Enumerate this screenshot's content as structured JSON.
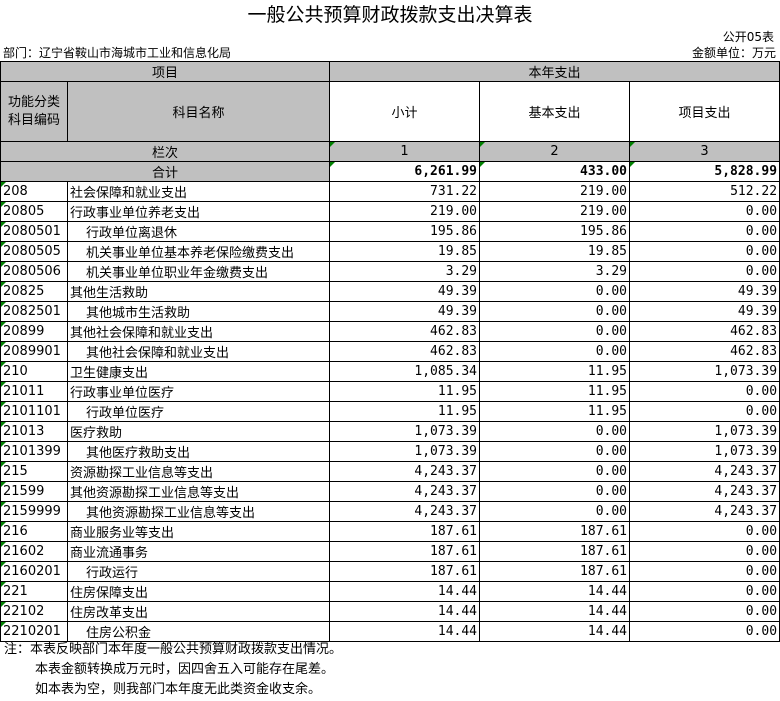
{
  "title": "一般公共预算财政拨款支出决算表",
  "form_code": "公开05表",
  "department": "部门：辽宁省鞍山市海城市工业和信息化局",
  "unit": "金额单位：万元",
  "header": {
    "project": "项目",
    "current_year": "本年支出",
    "func_code": "功能分类科目编码",
    "subject_name": "科目名称",
    "subtotal": "小计",
    "basic": "基本支出",
    "project_exp": "项目支出",
    "column_no": "栏次",
    "col1": "1",
    "col2": "2",
    "col3": "3"
  },
  "total": {
    "label": "合计",
    "subtotal": "6,261.99",
    "basic": "433.00",
    "project": "5,828.99"
  },
  "rows": [
    {
      "code": "208",
      "name": "社会保障和就业支出",
      "subtotal": "731.22",
      "basic": "219.00",
      "project": "512.22",
      "indent": 0
    },
    {
      "code": "20805",
      "name": "行政事业单位养老支出",
      "subtotal": "219.00",
      "basic": "219.00",
      "project": "0.00",
      "indent": 0
    },
    {
      "code": "2080501",
      "name": "行政单位离退休",
      "subtotal": "195.86",
      "basic": "195.86",
      "project": "0.00",
      "indent": 1
    },
    {
      "code": "2080505",
      "name": "机关事业单位基本养老保险缴费支出",
      "subtotal": "19.85",
      "basic": "19.85",
      "project": "0.00",
      "indent": 1
    },
    {
      "code": "2080506",
      "name": "机关事业单位职业年金缴费支出",
      "subtotal": "3.29",
      "basic": "3.29",
      "project": "0.00",
      "indent": 1
    },
    {
      "code": "20825",
      "name": "其他生活救助",
      "subtotal": "49.39",
      "basic": "0.00",
      "project": "49.39",
      "indent": 0
    },
    {
      "code": "2082501",
      "name": "其他城市生活救助",
      "subtotal": "49.39",
      "basic": "0.00",
      "project": "49.39",
      "indent": 1
    },
    {
      "code": "20899",
      "name": "其他社会保障和就业支出",
      "subtotal": "462.83",
      "basic": "0.00",
      "project": "462.83",
      "indent": 0
    },
    {
      "code": "2089901",
      "name": "其他社会保障和就业支出",
      "subtotal": "462.83",
      "basic": "0.00",
      "project": "462.83",
      "indent": 1
    },
    {
      "code": "210",
      "name": "卫生健康支出",
      "subtotal": "1,085.34",
      "basic": "11.95",
      "project": "1,073.39",
      "indent": 0
    },
    {
      "code": "21011",
      "name": "行政事业单位医疗",
      "subtotal": "11.95",
      "basic": "11.95",
      "project": "0.00",
      "indent": 0
    },
    {
      "code": "2101101",
      "name": "行政单位医疗",
      "subtotal": "11.95",
      "basic": "11.95",
      "project": "0.00",
      "indent": 1
    },
    {
      "code": "21013",
      "name": "医疗救助",
      "subtotal": "1,073.39",
      "basic": "0.00",
      "project": "1,073.39",
      "indent": 0
    },
    {
      "code": "2101399",
      "name": "其他医疗救助支出",
      "subtotal": "1,073.39",
      "basic": "0.00",
      "project": "1,073.39",
      "indent": 1
    },
    {
      "code": "215",
      "name": "资源勘探工业信息等支出",
      "subtotal": "4,243.37",
      "basic": "0.00",
      "project": "4,243.37",
      "indent": 0
    },
    {
      "code": "21599",
      "name": "其他资源勘探工业信息等支出",
      "subtotal": "4,243.37",
      "basic": "0.00",
      "project": "4,243.37",
      "indent": 0
    },
    {
      "code": "2159999",
      "name": "其他资源勘探工业信息等支出",
      "subtotal": "4,243.37",
      "basic": "0.00",
      "project": "4,243.37",
      "indent": 1
    },
    {
      "code": "216",
      "name": "商业服务业等支出",
      "subtotal": "187.61",
      "basic": "187.61",
      "project": "0.00",
      "indent": 0
    },
    {
      "code": "21602",
      "name": "商业流通事务",
      "subtotal": "187.61",
      "basic": "187.61",
      "project": "0.00",
      "indent": 0
    },
    {
      "code": "2160201",
      "name": "行政运行",
      "subtotal": "187.61",
      "basic": "187.61",
      "project": "0.00",
      "indent": 1
    },
    {
      "code": "221",
      "name": "住房保障支出",
      "subtotal": "14.44",
      "basic": "14.44",
      "project": "0.00",
      "indent": 0
    },
    {
      "code": "22102",
      "name": "住房改革支出",
      "subtotal": "14.44",
      "basic": "14.44",
      "project": "0.00",
      "indent": 0
    },
    {
      "code": "2210201",
      "name": "住房公积金",
      "subtotal": "14.44",
      "basic": "14.44",
      "project": "0.00",
      "indent": 1
    }
  ],
  "notes": {
    "n1": "注：本表反映部门本年度一般公共预算财政拨款支出情况。",
    "n2": "本表金额转换成万元时，因四舍五入可能存在尾差。",
    "n3": "如本表为空，则我部门本年度无此类资金收支余。"
  },
  "colors": {
    "header_bg": "#c0c0c0",
    "marker": "#008000"
  }
}
